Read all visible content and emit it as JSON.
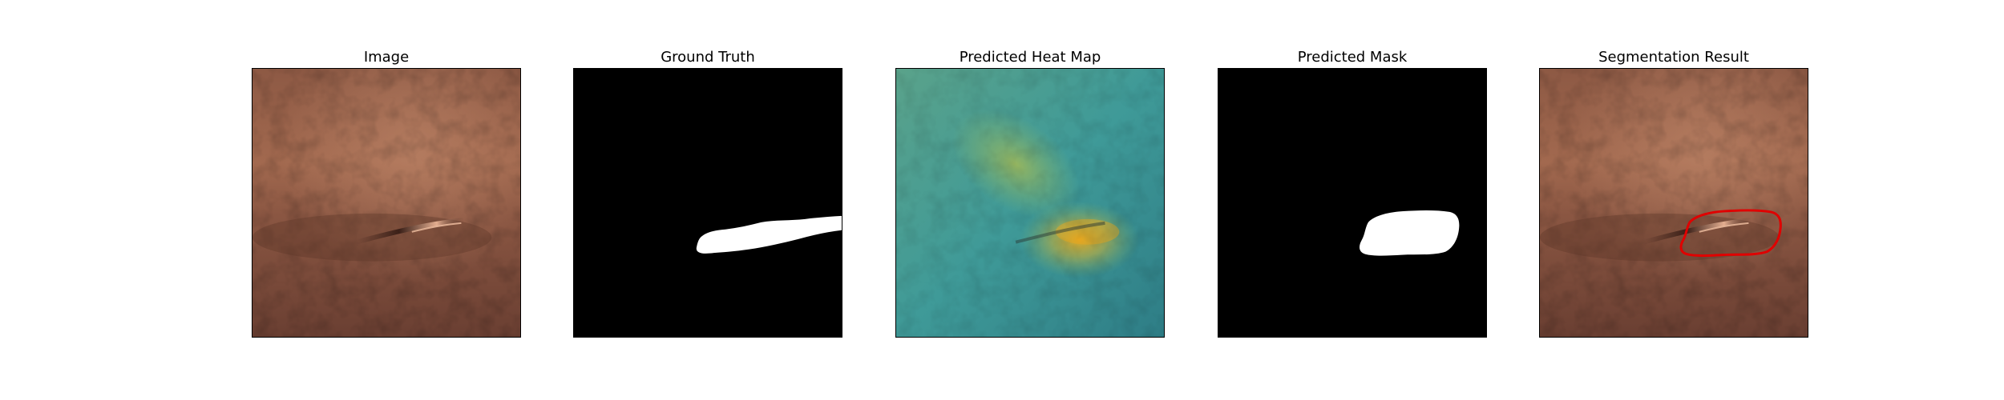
{
  "figure": {
    "panels": [
      {
        "title": "Image"
      },
      {
        "title": "Ground Truth"
      },
      {
        "title": "Predicted Heat Map"
      },
      {
        "title": "Predicted Mask"
      },
      {
        "title": "Segmentation Result"
      }
    ]
  },
  "colors": {
    "leather": "#8a5642",
    "mask_background": "#000000",
    "mask_foreground": "#ffffff",
    "heatmap_low": "#3e9a98",
    "heatmap_high": "#e6a61e",
    "contour": "#e00000"
  }
}
